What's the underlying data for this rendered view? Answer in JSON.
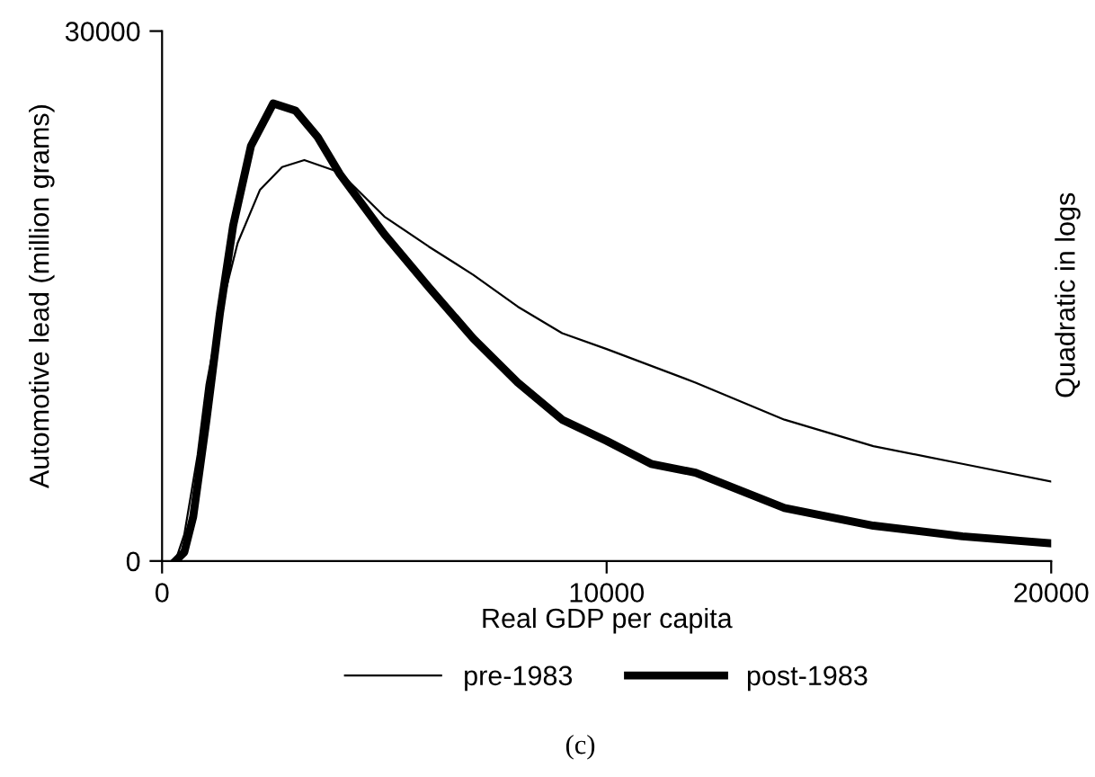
{
  "chart_data": {
    "type": "line",
    "xlabel": "Real GDP per capita",
    "ylabel": "Automotive lead (million grams)",
    "y2label": "Quadratic in logs",
    "annotations": [
      "(c)"
    ],
    "legend": "bottom",
    "grid": false,
    "marker": "none",
    "line_style": "solid",
    "xlim": [
      0,
      20000
    ],
    "ylim": [
      0,
      30000
    ],
    "xticks": [
      0,
      10000,
      20000
    ],
    "yticks": [
      0,
      30000
    ],
    "series": [
      {
        "name": "pre-1983",
        "color": "#000000",
        "x": [
          300,
          500,
          800,
          1000,
          1300,
          1700,
          2200,
          2700,
          3200,
          4000,
          5000,
          6000,
          7000,
          8000,
          9000,
          10000,
          12000,
          14000,
          16000,
          18000,
          20000
        ],
        "values": [
          0,
          1500,
          6000,
          10000,
          14000,
          18000,
          21000,
          22300,
          22700,
          22000,
          19500,
          17800,
          16200,
          14400,
          12900,
          12000,
          10100,
          8000,
          6500,
          5500,
          4500
        ]
      },
      {
        "name": "post-1983",
        "color": "#000000",
        "x": [
          300,
          500,
          700,
          1000,
          1300,
          1600,
          2000,
          2500,
          3000,
          3500,
          4000,
          5000,
          6000,
          7000,
          8000,
          9000,
          10000,
          11000,
          12000,
          14000,
          16000,
          18000,
          20000
        ],
        "values": [
          0,
          500,
          2500,
          8000,
          14000,
          19000,
          23500,
          25900,
          25500,
          24000,
          21900,
          18500,
          15500,
          12600,
          10100,
          8000,
          6800,
          5500,
          5000,
          3000,
          2000,
          1400,
          1000
        ]
      }
    ]
  }
}
